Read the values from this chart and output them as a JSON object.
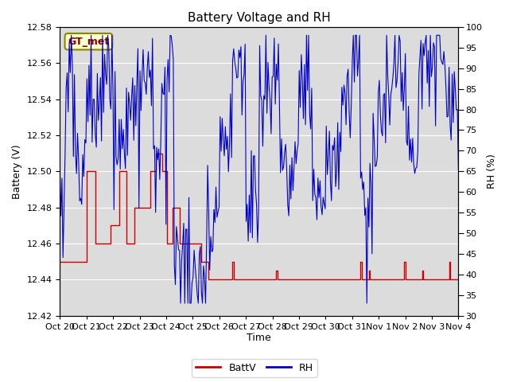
{
  "title": "Battery Voltage and RH",
  "xlabel": "Time",
  "ylabel_left": "Battery (V)",
  "ylabel_right": "RH (%)",
  "ylim_left": [
    12.42,
    12.58
  ],
  "ylim_right": [
    30,
    100
  ],
  "yticks_left": [
    12.42,
    12.44,
    12.46,
    12.48,
    12.5,
    12.52,
    12.54,
    12.56,
    12.58
  ],
  "yticks_right": [
    30,
    35,
    40,
    45,
    50,
    55,
    60,
    65,
    70,
    75,
    80,
    85,
    90,
    95,
    100
  ],
  "xtick_labels": [
    "Oct 20",
    "Oct 21",
    "Oct 22",
    "Oct 23",
    "Oct 24",
    "Oct 25",
    "Oct 26",
    "Oct 27",
    "Oct 28",
    "Oct 29",
    "Oct 30",
    "Oct 31",
    "Nov 1",
    "Nov 2",
    "Nov 3",
    "Nov 4"
  ],
  "label_battv": "BattV",
  "label_rh": "RH",
  "color_battv": "#cc0000",
  "color_rh": "#0000cc",
  "bg_color": "#dcdcdc",
  "annotation_text": "GT_met",
  "annotation_box_facecolor": "#ffffcc",
  "annotation_box_edgecolor": "#888800",
  "title_fontsize": 11,
  "axis_label_fontsize": 9,
  "tick_label_fontsize": 8,
  "legend_fontsize": 9
}
